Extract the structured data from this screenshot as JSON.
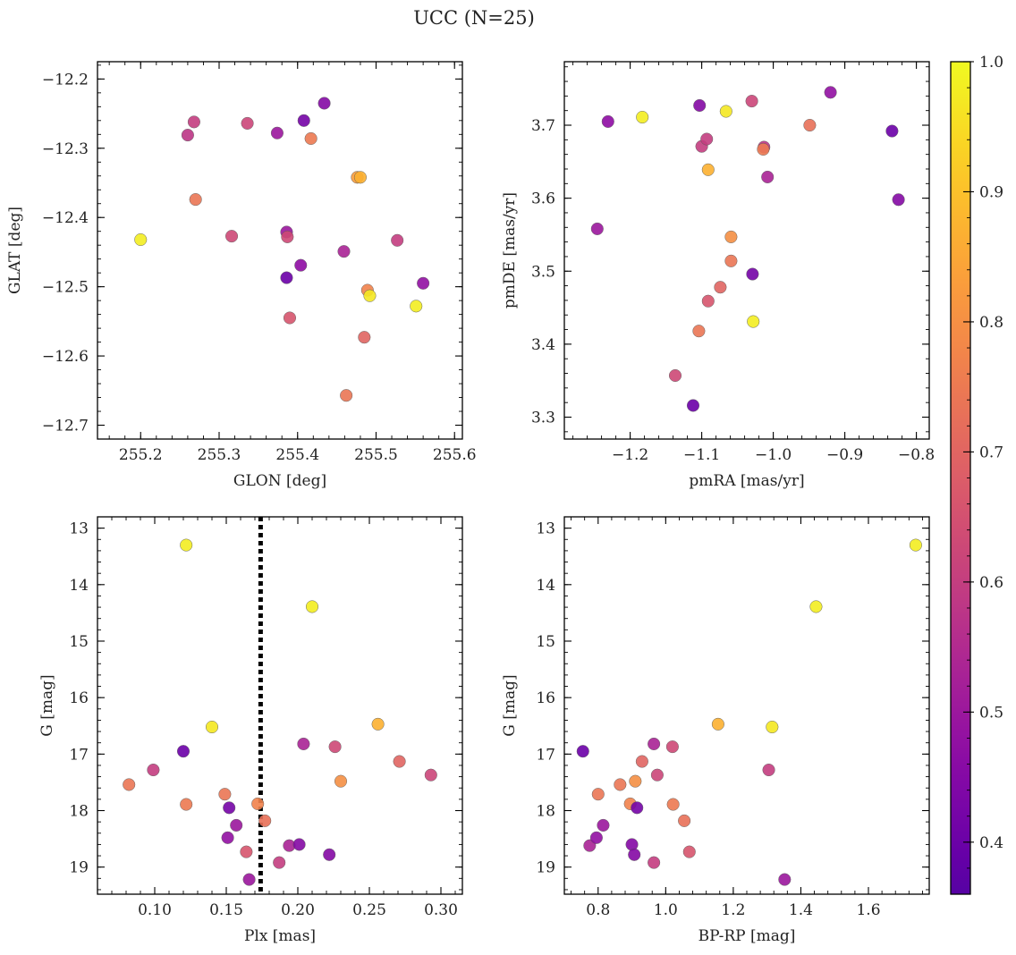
{
  "title": "UCC (N=25)",
  "chart_data": [
    {
      "type": "scatter",
      "xlabel": "GLON [deg]",
      "ylabel": "GLAT [deg]",
      "xlim": [
        255.145,
        255.61
      ],
      "ylim": [
        -12.72,
        -12.175
      ],
      "y_inverted": false,
      "xticks": [
        255.2,
        255.3,
        255.4,
        255.5,
        255.6
      ],
      "xtick_labels": [
        "255.2",
        "255.3",
        "255.4",
        "255.5",
        "255.6"
      ],
      "yticks": [
        -12.2,
        -12.3,
        -12.4,
        -12.5,
        -12.6,
        -12.7
      ],
      "ytick_labels": [
        "−12.2",
        "−12.3",
        "−12.4",
        "−12.5",
        "−12.6",
        "−12.7"
      ],
      "points": [
        {
          "x": 255.2,
          "y": -12.432,
          "c": 0.98
        },
        {
          "x": 255.26,
          "y": -12.281,
          "c": 0.58
        },
        {
          "x": 255.268,
          "y": -12.262,
          "c": 0.6
        },
        {
          "x": 255.27,
          "y": -12.374,
          "c": 0.74
        },
        {
          "x": 255.316,
          "y": -12.427,
          "c": 0.63
        },
        {
          "x": 255.336,
          "y": -12.264,
          "c": 0.62
        },
        {
          "x": 255.374,
          "y": -12.278,
          "c": 0.5
        },
        {
          "x": 255.386,
          "y": -12.421,
          "c": 0.5
        },
        {
          "x": 255.387,
          "y": -12.428,
          "c": 0.63
        },
        {
          "x": 255.386,
          "y": -12.487,
          "c": 0.4
        },
        {
          "x": 255.39,
          "y": -12.545,
          "c": 0.66
        },
        {
          "x": 255.404,
          "y": -12.469,
          "c": 0.47
        },
        {
          "x": 255.408,
          "y": -12.26,
          "c": 0.42
        },
        {
          "x": 255.417,
          "y": -12.286,
          "c": 0.75
        },
        {
          "x": 255.434,
          "y": -12.235,
          "c": 0.45
        },
        {
          "x": 255.459,
          "y": -12.449,
          "c": 0.53
        },
        {
          "x": 255.462,
          "y": -12.657,
          "c": 0.74
        },
        {
          "x": 255.476,
          "y": -12.342,
          "c": 0.83
        },
        {
          "x": 255.48,
          "y": -12.342,
          "c": 0.87
        },
        {
          "x": 255.485,
          "y": -12.573,
          "c": 0.7
        },
        {
          "x": 255.489,
          "y": -12.505,
          "c": 0.77
        },
        {
          "x": 255.492,
          "y": -12.513,
          "c": 0.97
        },
        {
          "x": 255.527,
          "y": -12.433,
          "c": 0.6
        },
        {
          "x": 255.551,
          "y": -12.528,
          "c": 0.98
        },
        {
          "x": 255.56,
          "y": -12.495,
          "c": 0.48
        }
      ]
    },
    {
      "type": "scatter",
      "xlabel": "pmRA [mas/yr]",
      "ylabel": "pmDE [mas/yr]",
      "xlim": [
        -1.292,
        -0.782
      ],
      "ylim": [
        3.27,
        3.787
      ],
      "y_inverted": false,
      "xticks": [
        -1.2,
        -1.1,
        -1.0,
        -0.9,
        -0.8
      ],
      "xtick_labels": [
        "−1.2",
        "−1.1",
        "−1.0",
        "−0.9",
        "−0.8"
      ],
      "yticks": [
        3.3,
        3.4,
        3.5,
        3.6,
        3.7
      ],
      "ytick_labels": [
        "3.3",
        "3.4",
        "3.5",
        "3.6",
        "3.7"
      ],
      "points": [
        {
          "x": -1.246,
          "y": 3.558,
          "c": 0.5
        },
        {
          "x": -1.231,
          "y": 3.705,
          "c": 0.47
        },
        {
          "x": -1.183,
          "y": 3.711,
          "c": 0.98
        },
        {
          "x": -1.137,
          "y": 3.357,
          "c": 0.63
        },
        {
          "x": -1.112,
          "y": 3.316,
          "c": 0.4
        },
        {
          "x": -1.104,
          "y": 3.418,
          "c": 0.74
        },
        {
          "x": -1.103,
          "y": 3.727,
          "c": 0.45
        },
        {
          "x": -1.1,
          "y": 3.671,
          "c": 0.6
        },
        {
          "x": -1.093,
          "y": 3.681,
          "c": 0.6
        },
        {
          "x": -1.091,
          "y": 3.639,
          "c": 0.87
        },
        {
          "x": -1.091,
          "y": 3.459,
          "c": 0.66
        },
        {
          "x": -1.074,
          "y": 3.478,
          "c": 0.7
        },
        {
          "x": -1.066,
          "y": 3.719,
          "c": 0.97
        },
        {
          "x": -1.059,
          "y": 3.547,
          "c": 0.8
        },
        {
          "x": -1.059,
          "y": 3.514,
          "c": 0.74
        },
        {
          "x": -1.03,
          "y": 3.733,
          "c": 0.62
        },
        {
          "x": -1.029,
          "y": 3.496,
          "c": 0.42
        },
        {
          "x": -1.028,
          "y": 3.431,
          "c": 0.98
        },
        {
          "x": -1.013,
          "y": 3.67,
          "c": 0.58
        },
        {
          "x": -1.014,
          "y": 3.667,
          "c": 0.75
        },
        {
          "x": -1.008,
          "y": 3.629,
          "c": 0.53
        },
        {
          "x": -0.949,
          "y": 3.7,
          "c": 0.73
        },
        {
          "x": -0.92,
          "y": 3.745,
          "c": 0.48
        },
        {
          "x": -0.834,
          "y": 3.692,
          "c": 0.4
        },
        {
          "x": -0.825,
          "y": 3.598,
          "c": 0.45
        }
      ]
    },
    {
      "type": "scatter",
      "xlabel": "Plx [mas]",
      "ylabel": "G [mag]",
      "xlim": [
        0.06,
        0.315
      ],
      "ylim": [
        12.8,
        19.48
      ],
      "y_inverted": true,
      "xticks": [
        0.1,
        0.15,
        0.2,
        0.25,
        0.3
      ],
      "xtick_labels": [
        "0.10",
        "0.15",
        "0.20",
        "0.25",
        "0.30"
      ],
      "yticks": [
        13,
        14,
        15,
        16,
        17,
        18,
        19
      ],
      "ytick_labels": [
        "13",
        "14",
        "15",
        "16",
        "17",
        "18",
        "19"
      ],
      "vline": 0.174,
      "points": [
        {
          "x": 0.082,
          "y": 17.54,
          "c": 0.74
        },
        {
          "x": 0.099,
          "y": 17.28,
          "c": 0.6
        },
        {
          "x": 0.12,
          "y": 16.95,
          "c": 0.4
        },
        {
          "x": 0.122,
          "y": 17.89,
          "c": 0.75
        },
        {
          "x": 0.122,
          "y": 13.3,
          "c": 0.98
        },
        {
          "x": 0.14,
          "y": 16.52,
          "c": 0.97
        },
        {
          "x": 0.149,
          "y": 17.71,
          "c": 0.74
        },
        {
          "x": 0.151,
          "y": 18.48,
          "c": 0.48
        },
        {
          "x": 0.152,
          "y": 17.95,
          "c": 0.42
        },
        {
          "x": 0.157,
          "y": 18.26,
          "c": 0.5
        },
        {
          "x": 0.164,
          "y": 18.73,
          "c": 0.66
        },
        {
          "x": 0.166,
          "y": 19.22,
          "c": 0.5
        },
        {
          "x": 0.172,
          "y": 17.88,
          "c": 0.77
        },
        {
          "x": 0.177,
          "y": 18.18,
          "c": 0.73
        },
        {
          "x": 0.187,
          "y": 18.92,
          "c": 0.6
        },
        {
          "x": 0.194,
          "y": 18.62,
          "c": 0.53
        },
        {
          "x": 0.201,
          "y": 18.6,
          "c": 0.45
        },
        {
          "x": 0.204,
          "y": 16.82,
          "c": 0.53
        },
        {
          "x": 0.21,
          "y": 14.39,
          "c": 0.98
        },
        {
          "x": 0.222,
          "y": 18.78,
          "c": 0.45
        },
        {
          "x": 0.226,
          "y": 16.87,
          "c": 0.63
        },
        {
          "x": 0.23,
          "y": 17.48,
          "c": 0.8
        },
        {
          "x": 0.256,
          "y": 16.47,
          "c": 0.87
        },
        {
          "x": 0.271,
          "y": 17.13,
          "c": 0.7
        },
        {
          "x": 0.293,
          "y": 17.37,
          "c": 0.62
        }
      ]
    },
    {
      "type": "scatter",
      "xlabel": "BP-RP [mag]",
      "ylabel": "G [mag]",
      "xlim": [
        0.7,
        1.78
      ],
      "ylim": [
        12.8,
        19.48
      ],
      "y_inverted": true,
      "xticks": [
        0.8,
        1.0,
        1.2,
        1.4,
        1.6
      ],
      "xtick_labels": [
        "0.8",
        "1.0",
        "1.2",
        "1.4",
        "1.6"
      ],
      "yticks": [
        13,
        14,
        15,
        16,
        17,
        18,
        19
      ],
      "ytick_labels": [
        "13",
        "14",
        "15",
        "16",
        "17",
        "18",
        "19"
      ],
      "points": [
        {
          "x": 0.755,
          "y": 16.95,
          "c": 0.4
        },
        {
          "x": 0.775,
          "y": 18.62,
          "c": 0.53
        },
        {
          "x": 0.795,
          "y": 18.48,
          "c": 0.48
        },
        {
          "x": 0.8,
          "y": 17.71,
          "c": 0.74
        },
        {
          "x": 0.815,
          "y": 18.26,
          "c": 0.5
        },
        {
          "x": 0.865,
          "y": 17.54,
          "c": 0.74
        },
        {
          "x": 0.895,
          "y": 17.88,
          "c": 0.77
        },
        {
          "x": 0.9,
          "y": 18.6,
          "c": 0.45
        },
        {
          "x": 0.907,
          "y": 18.78,
          "c": 0.45
        },
        {
          "x": 0.91,
          "y": 17.48,
          "c": 0.8
        },
        {
          "x": 0.915,
          "y": 17.95,
          "c": 0.42
        },
        {
          "x": 0.93,
          "y": 17.13,
          "c": 0.7
        },
        {
          "x": 0.965,
          "y": 16.82,
          "c": 0.53
        },
        {
          "x": 0.965,
          "y": 18.92,
          "c": 0.6
        },
        {
          "x": 0.975,
          "y": 17.37,
          "c": 0.62
        },
        {
          "x": 1.02,
          "y": 16.87,
          "c": 0.63
        },
        {
          "x": 1.022,
          "y": 17.89,
          "c": 0.75
        },
        {
          "x": 1.055,
          "y": 18.18,
          "c": 0.73
        },
        {
          "x": 1.07,
          "y": 18.73,
          "c": 0.66
        },
        {
          "x": 1.155,
          "y": 16.47,
          "c": 0.87
        },
        {
          "x": 1.305,
          "y": 17.28,
          "c": 0.6
        },
        {
          "x": 1.315,
          "y": 16.52,
          "c": 0.97
        },
        {
          "x": 1.352,
          "y": 19.22,
          "c": 0.5
        },
        {
          "x": 1.445,
          "y": 14.39,
          "c": 0.98
        },
        {
          "x": 1.74,
          "y": 13.3,
          "c": 0.98
        }
      ]
    }
  ],
  "colorbar": {
    "cmap": "plasma",
    "range": [
      0.36,
      1.0
    ],
    "ticks": [
      0.4,
      0.5,
      0.6,
      0.7,
      0.8,
      0.9,
      1.0
    ],
    "tick_labels": [
      "0.4",
      "0.5",
      "0.6",
      "0.7",
      "0.8",
      "0.9",
      "1.0"
    ]
  }
}
